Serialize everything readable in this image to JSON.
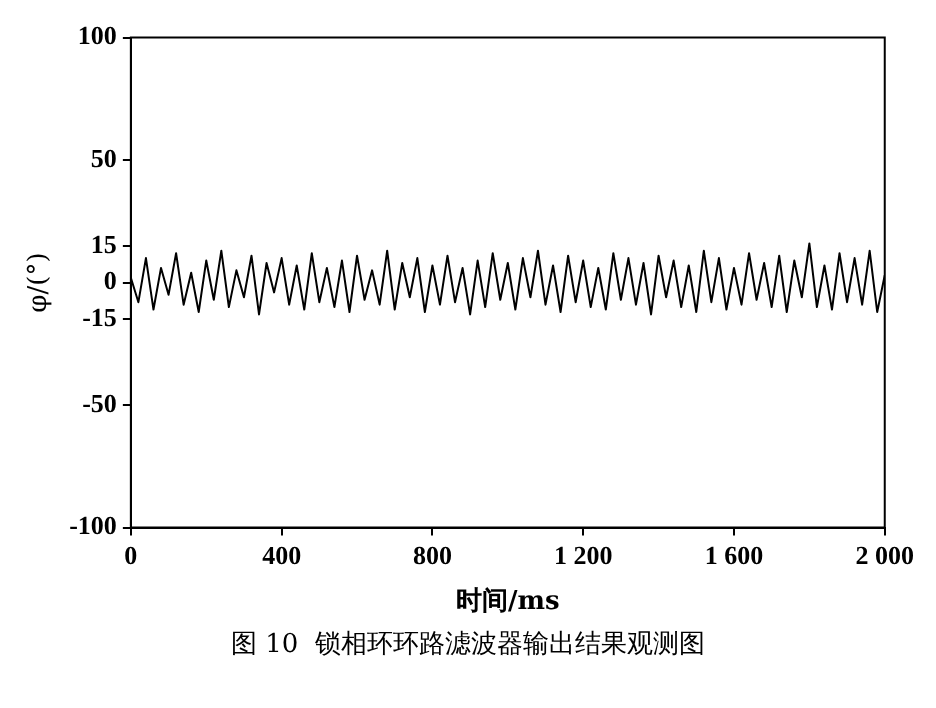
{
  "chart_data": {
    "type": "line",
    "xlabel": "时间/ms",
    "ylabel": "φ/(°)",
    "annotations": [
      "图 10  锁相环环路滤波器输出结果观测图"
    ],
    "x": [
      0,
      20,
      40,
      60,
      80,
      100,
      120,
      140,
      160,
      180,
      200,
      220,
      240,
      260,
      280,
      300,
      320,
      340,
      360,
      380,
      400,
      420,
      440,
      460,
      480,
      500,
      520,
      540,
      560,
      580,
      600,
      620,
      640,
      660,
      680,
      700,
      720,
      740,
      760,
      780,
      800,
      820,
      840,
      860,
      880,
      900,
      920,
      940,
      960,
      980,
      1000,
      1020,
      1040,
      1060,
      1080,
      1100,
      1120,
      1140,
      1160,
      1180,
      1200,
      1220,
      1240,
      1260,
      1280,
      1300,
      1320,
      1340,
      1360,
      1380,
      1400,
      1420,
      1440,
      1460,
      1480,
      1500,
      1520,
      1540,
      1560,
      1580,
      1600,
      1620,
      1640,
      1660,
      1680,
      1700,
      1720,
      1740,
      1760,
      1780,
      1800,
      1820,
      1840,
      1860,
      1880,
      1900,
      1920,
      1940,
      1960,
      1980,
      2000
    ],
    "series": [
      {
        "color": "#000000",
        "values": [
          2,
          -8,
          10,
          -11,
          6,
          -5,
          12,
          -9,
          4,
          -12,
          9,
          -7,
          13,
          -10,
          5,
          -6,
          11,
          -13,
          8,
          -4,
          10,
          -9,
          7,
          -11,
          12,
          -8,
          6,
          -10,
          9,
          -12,
          11,
          -7,
          5,
          -9,
          13,
          -11,
          8,
          -6,
          10,
          -12,
          7,
          -9,
          11,
          -8,
          6,
          -13,
          9,
          -10,
          12,
          -7,
          8,
          -11,
          10,
          -6,
          13,
          -9,
          7,
          -12,
          11,
          -8,
          9,
          -10,
          6,
          -11,
          12,
          -7,
          10,
          -9,
          8,
          -13,
          11,
          -6,
          9,
          -10,
          7,
          -12,
          13,
          -8,
          10,
          -11,
          6,
          -9,
          12,
          -7,
          8,
          -10,
          11,
          -12,
          9,
          -6,
          16,
          -10,
          7,
          -11,
          12,
          -8,
          10,
          -9,
          13,
          -12,
          3
        ]
      }
    ],
    "xlim": [
      0,
      2000
    ],
    "ylim": [
      -100,
      100
    ],
    "xticks": [
      0,
      400,
      800,
      {
        "value": 1200,
        "label": "1 200"
      },
      {
        "value": 1600,
        "label": "1 600"
      },
      {
        "value": 2000,
        "label": "2 000"
      }
    ],
    "yticks": [
      -100,
      -50,
      -15,
      0,
      15,
      50,
      100
    ],
    "grid": false,
    "legend": false,
    "marker": "none",
    "line_style": "solid"
  }
}
